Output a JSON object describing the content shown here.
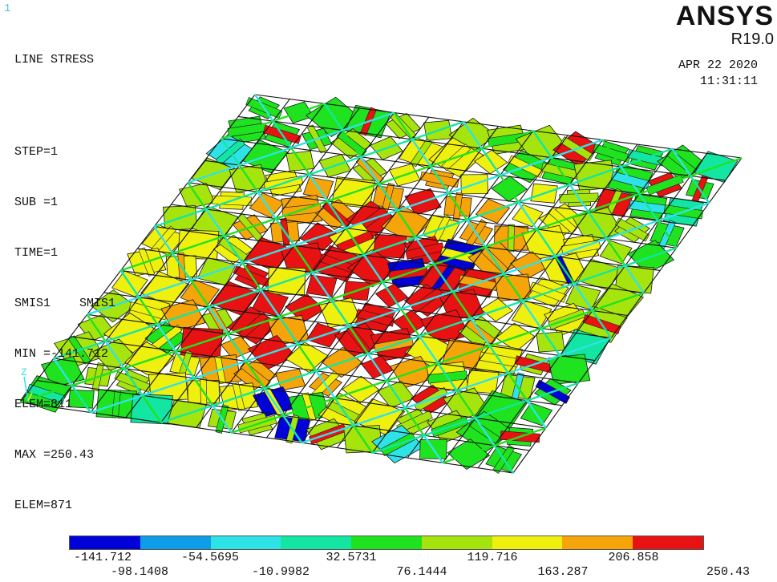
{
  "window_number": "1",
  "info": {
    "title": "LINE STRESS",
    "step": "STEP=1",
    "sub": "SUB =1",
    "time": "TIME=1",
    "item": "SMIS1    SMIS1",
    "min": "MIN =-141.712",
    "min_elem": "ELEM=811",
    "max": "MAX =250.43",
    "max_elem": "ELEM=871"
  },
  "brand": {
    "name": "ANSYS",
    "release": "R19.0"
  },
  "datetime": {
    "date": "APR 22 2020",
    "time": "11:31:11"
  },
  "axis_triad": {
    "z_label": "Z"
  },
  "legend": {
    "colors": [
      "#0000d9",
      "#0f9ce8",
      "#2ee3e8",
      "#12e6a2",
      "#1ee31e",
      "#a6e40e",
      "#f0f00e",
      "#f5a50a",
      "#e81212"
    ],
    "labels_top": [
      "-141.712",
      "-54.5695",
      "32.5731",
      "119.716",
      "206.858"
    ],
    "labels_bottom": [
      "-98.1408",
      "-10.9982",
      "76.1444",
      "163.287",
      "250.43"
    ]
  }
}
